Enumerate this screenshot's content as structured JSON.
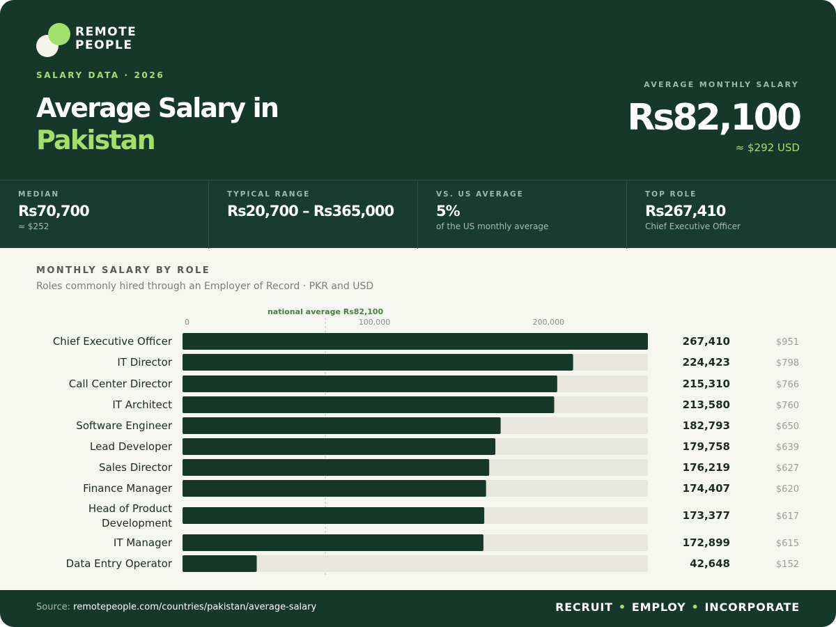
{
  "brand": {
    "line1": "REMOTE",
    "line2": "PEOPLE",
    "logo": "overlapping-circles-logo"
  },
  "header": {
    "kicker": "SALARY DATA · 2026",
    "title_line1": "Average Salary in",
    "title_line2": "Pakistan",
    "avg_label": "AVERAGE MONTHLY SALARY",
    "avg_value": "Rs82,100",
    "avg_usd": "≈ $292 USD"
  },
  "stats": [
    {
      "label": "MEDIAN",
      "value": "Rs70,700",
      "sub": "≈ $252"
    },
    {
      "label": "TYPICAL RANGE",
      "value": "Rs20,700 – Rs365,000",
      "sub": ""
    },
    {
      "label": "VS. US AVERAGE",
      "value": "5%",
      "sub": "of the US monthly average"
    },
    {
      "label": "TOP ROLE",
      "value": "Rs267,410",
      "sub": "Chief Executive Officer"
    }
  ],
  "section": {
    "title": "MONTHLY SALARY BY ROLE",
    "subtitle": "Roles commonly hired through an Employer of Record · PKR and USD"
  },
  "chart_data": {
    "type": "bar",
    "orientation": "horizontal",
    "title": "MONTHLY SALARY BY ROLE",
    "xlim": [
      0,
      267410
    ],
    "xticks": [
      0,
      100000,
      200000
    ],
    "xtick_labels": [
      "0",
      "100,000",
      "200,000"
    ],
    "reference_line": {
      "label": "national average",
      "value_label": "Rs82,100",
      "value": 82100
    },
    "categories": [
      "Chief Executive Officer",
      "IT Director",
      "Call Center Director",
      "IT Architect",
      "Software Engineer",
      "Lead Developer",
      "Sales Director",
      "Finance Manager",
      "Head of Product Development",
      "IT Manager",
      "Data Entry Operator"
    ],
    "values": [
      267410,
      224423,
      215310,
      213580,
      182793,
      179758,
      176219,
      174407,
      173377,
      172899,
      42648
    ],
    "value_labels": [
      "267,410",
      "224,423",
      "215,310",
      "213,580",
      "182,793",
      "179,758",
      "176,219",
      "174,407",
      "173,377",
      "172,899",
      "42,648"
    ],
    "usd_labels": [
      "$951",
      "$798",
      "$766",
      "$760",
      "$650",
      "$639",
      "$627",
      "$620",
      "$617",
      "$615",
      "$152"
    ],
    "colors": {
      "bar": "#15382b",
      "track": "#e7e7df",
      "reference": "#4f7a45"
    }
  },
  "footer": {
    "source_prefix": "Source:",
    "source_url": "remotepeople.com/countries/pakistan/average-salary",
    "tag1": "RECRUIT",
    "sep": "•",
    "tag2": "EMPLOY",
    "tag3": "INCORPORATE"
  },
  "colors": {
    "brand_dark": "#15382b",
    "accent": "#a3e06b"
  }
}
